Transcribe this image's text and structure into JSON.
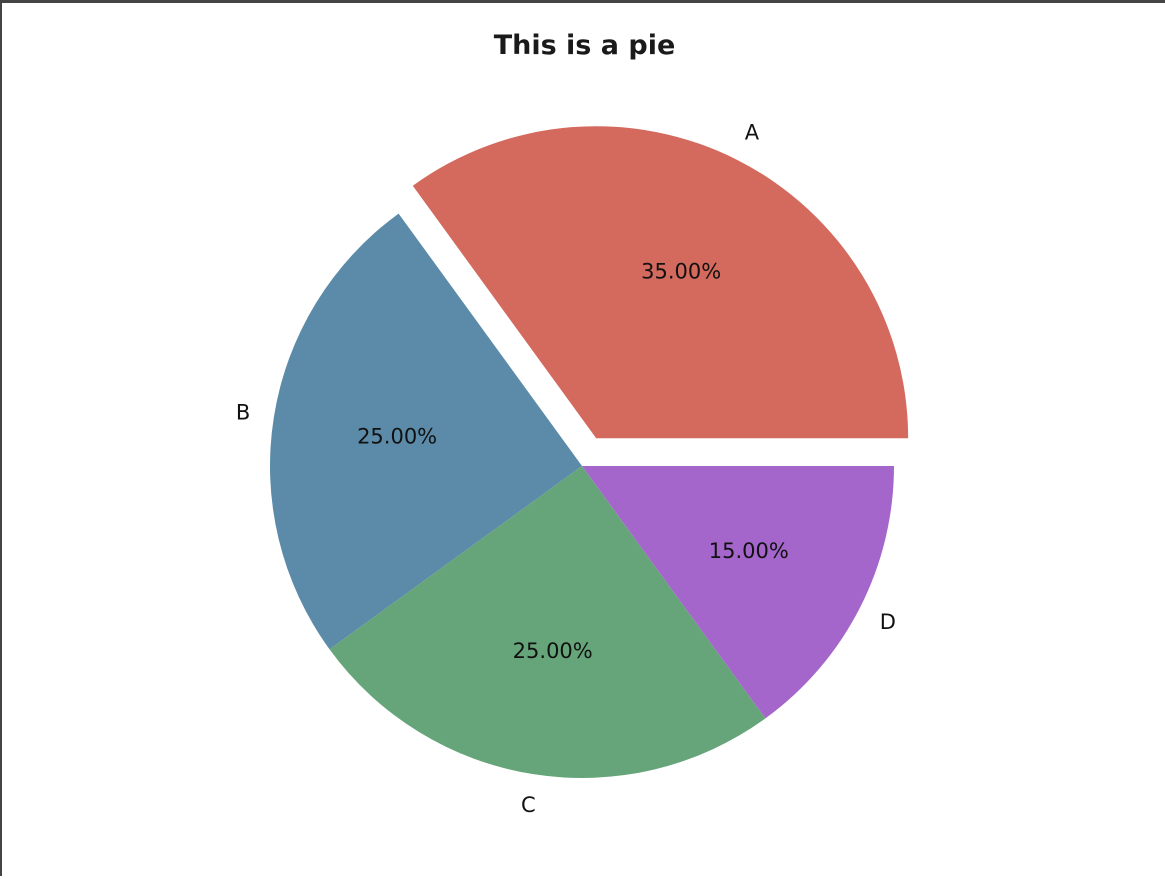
{
  "chart_data": {
    "type": "pie",
    "title": "This is a pie",
    "categories": [
      "A",
      "B",
      "C",
      "D"
    ],
    "values": [
      35,
      25,
      25,
      15
    ],
    "percent_labels": [
      "35.00%",
      "25.00%",
      "25.00%",
      "15.00%"
    ],
    "colors": [
      "#d46a5e",
      "#5b8ba8",
      "#66a57a",
      "#a566cc"
    ],
    "explode": [
      0.1,
      0,
      0,
      0
    ],
    "start_angle_deg": 0,
    "direction": "counterclockwise"
  }
}
